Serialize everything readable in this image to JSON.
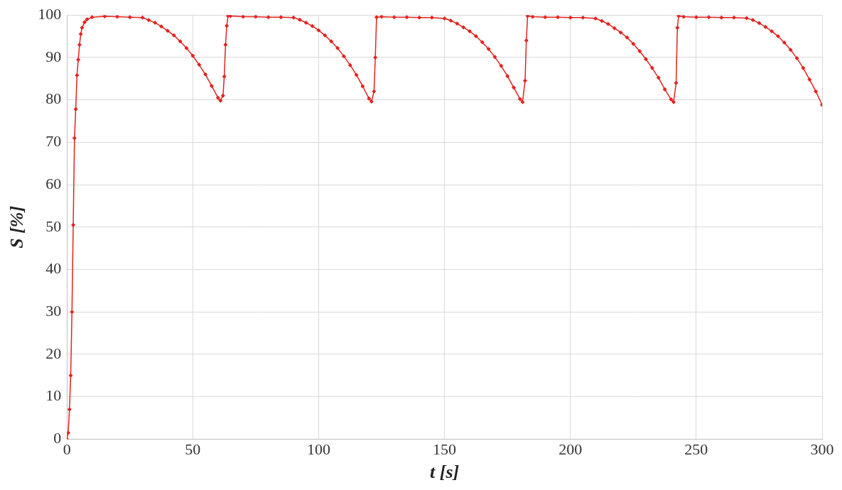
{
  "chart_data": {
    "type": "line",
    "x_label": "t [s]",
    "y_label": "S [%]",
    "x": [
      0,
      0.5,
      1,
      1.5,
      2,
      2.5,
      3,
      3.5,
      4,
      4.5,
      5,
      5.5,
      6,
      7,
      8,
      10,
      15,
      20,
      25,
      30,
      32.5,
      35,
      37.5,
      40,
      42.5,
      45,
      47.5,
      50,
      52.5,
      55,
      57.5,
      60,
      61,
      62,
      62.5,
      63,
      63.5,
      64,
      65,
      70,
      75,
      80,
      85,
      90,
      92.5,
      95,
      97.5,
      100,
      102.5,
      105,
      107.5,
      110,
      112.5,
      115,
      117.5,
      120,
      121,
      122,
      122.5,
      123,
      125,
      130,
      135,
      140,
      145,
      150,
      152.5,
      155,
      157.5,
      160,
      162.5,
      165,
      167.5,
      170,
      172.5,
      175,
      177.5,
      180,
      181,
      182,
      182.5,
      183,
      185,
      190,
      195,
      200,
      205,
      210,
      212.5,
      215,
      217.5,
      220,
      222.5,
      225,
      227.5,
      230,
      232.5,
      235,
      237.5,
      240,
      241,
      242,
      242.5,
      243,
      245,
      250,
      255,
      260,
      265,
      270,
      272.5,
      275,
      277.5,
      280,
      282.5,
      285,
      287.5,
      290,
      292.5,
      295,
      297.5,
      300
    ],
    "values": [
      0,
      1.5,
      7,
      15,
      30,
      50.5,
      71,
      77.8,
      85.8,
      89.5,
      93,
      95.5,
      97,
      98.3,
      99,
      99.5,
      99.7,
      99.6,
      99.5,
      99.4,
      98.8,
      98.2,
      97.3,
      96.3,
      95.2,
      93.8,
      92.2,
      90.4,
      88.3,
      86,
      83.3,
      80.5,
      79.8,
      81,
      85.5,
      93,
      97.5,
      99.8,
      99.8,
      99.6,
      99.6,
      99.5,
      99.5,
      99.4,
      98.9,
      98.2,
      97.4,
      96.4,
      95.2,
      93.8,
      92.2,
      90.3,
      88.2,
      85.9,
      83.2,
      80.3,
      79.6,
      82,
      90,
      99.5,
      99.6,
      99.5,
      99.5,
      99.4,
      99.4,
      99.2,
      98.7,
      98,
      97.1,
      96.2,
      95,
      93.6,
      92,
      90.1,
      88,
      85.6,
      82.9,
      80.2,
      79.5,
      84.5,
      94,
      99.8,
      99.6,
      99.5,
      99.5,
      99.4,
      99.4,
      99.2,
      98.6,
      97.9,
      96.9,
      95.9,
      94.7,
      93.2,
      91.5,
      89.6,
      87.5,
      85.2,
      82.5,
      80.1,
      79.5,
      84,
      97,
      99.8,
      99.6,
      99.5,
      99.5,
      99.4,
      99.4,
      99.3,
      98.8,
      98.1,
      97.2,
      96.2,
      95,
      93.5,
      91.8,
      89.8,
      87.5,
      84.8,
      82,
      78.8
    ],
    "color": "#e3231f",
    "marker": "diamond",
    "line_style": "solid",
    "xlim": [
      0,
      300
    ],
    "xticks": [
      0,
      50,
      100,
      150,
      200,
      250,
      300
    ],
    "ylim": [
      0,
      100
    ],
    "yticks": [
      0,
      10,
      20,
      30,
      40,
      50,
      60,
      70,
      80,
      90,
      100
    ],
    "grid": true
  }
}
